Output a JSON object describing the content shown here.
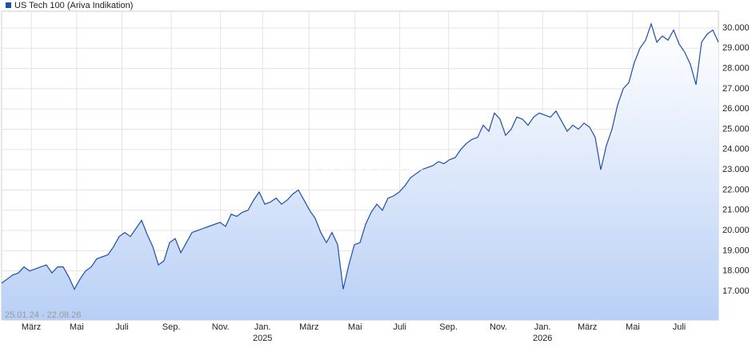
{
  "chart_data": {
    "type": "line",
    "title": "US Tech 100 (Ariva Indikation)",
    "annotation": "25.01.24 - 22.08.26",
    "watermark": "ARIVA.DE",
    "color": "#1f4fa8",
    "grid": true,
    "values": [
      17400,
      17600,
      17800,
      17900,
      18200,
      18000,
      18100,
      18200,
      18300,
      17900,
      18200,
      18200,
      17700,
      17100,
      17600,
      18000,
      18200,
      18600,
      18700,
      18800,
      19200,
      19700,
      19900,
      19700,
      20100,
      20500,
      19800,
      19200,
      18300,
      18500,
      19400,
      19600,
      18900,
      19400,
      19900,
      20000,
      20100,
      20200,
      20300,
      20400,
      20200,
      20800,
      20700,
      20900,
      21000,
      21500,
      21900,
      21300,
      21400,
      21600,
      21300,
      21500,
      21800,
      22000,
      21500,
      21000,
      20600,
      19900,
      19400,
      19900,
      19300,
      17100,
      18300,
      19300,
      19400,
      20300,
      20900,
      21300,
      21000,
      21600,
      21700,
      21900,
      22200,
      22600,
      22800,
      23000,
      23100,
      23200,
      23400,
      23300,
      23500,
      23600,
      24000,
      24300,
      24500,
      24600,
      25200,
      24900,
      25800,
      25500,
      24700,
      25000,
      25600,
      25500,
      25200,
      25600,
      25800,
      25700,
      25600,
      25900,
      25400,
      24900,
      25200,
      25000,
      25300,
      25100,
      24600,
      23000,
      24200,
      25000,
      26200,
      27000,
      27300,
      28300,
      29000,
      29400,
      30200,
      29300,
      29600,
      29400,
      29900,
      29200,
      28800,
      28200,
      27200,
      29300,
      29700,
      29900,
      29300
    ],
    "xlim": [
      0,
      128
    ],
    "xticks": [
      {
        "value": 5.3,
        "label": "März"
      },
      {
        "value": 13.4,
        "label": "Mai"
      },
      {
        "value": 21.5,
        "label": "Juli"
      },
      {
        "value": 30.3,
        "label": "Sep."
      },
      {
        "value": 39.1,
        "label": "Nov."
      },
      {
        "value": 46.6,
        "label": "Jan."
      },
      {
        "value": 54.9,
        "label": "März"
      },
      {
        "value": 63.1,
        "label": "Mai"
      },
      {
        "value": 71.1,
        "label": "Juli"
      },
      {
        "value": 79.8,
        "label": "Sep."
      },
      {
        "value": 88.7,
        "label": "Nov."
      },
      {
        "value": 96.6,
        "label": "Jan."
      },
      {
        "value": 104.6,
        "label": "März"
      },
      {
        "value": 112.7,
        "label": "Mai"
      },
      {
        "value": 121.0,
        "label": "Juli"
      }
    ],
    "x_year_labels": [
      {
        "value": 46.6,
        "label": "2025"
      },
      {
        "value": 96.6,
        "label": "2026"
      }
    ],
    "ylim": [
      15577,
      30830
    ],
    "yticks": [
      {
        "value": 17000,
        "label": "17.000"
      },
      {
        "value": 18000,
        "label": "18.000"
      },
      {
        "value": 19000,
        "label": "19.000"
      },
      {
        "value": 20000,
        "label": "20.000"
      },
      {
        "value": 21000,
        "label": "21.000"
      },
      {
        "value": 22000,
        "label": "22.000"
      },
      {
        "value": 23000,
        "label": "23.000"
      },
      {
        "value": 24000,
        "label": "24.000"
      },
      {
        "value": 25000,
        "label": "25.000"
      },
      {
        "value": 26000,
        "label": "26.000"
      },
      {
        "value": 27000,
        "label": "27.000"
      },
      {
        "value": 28000,
        "label": "28.000"
      },
      {
        "value": 29000,
        "label": "29.000"
      },
      {
        "value": 30000,
        "label": "30.000"
      }
    ]
  }
}
